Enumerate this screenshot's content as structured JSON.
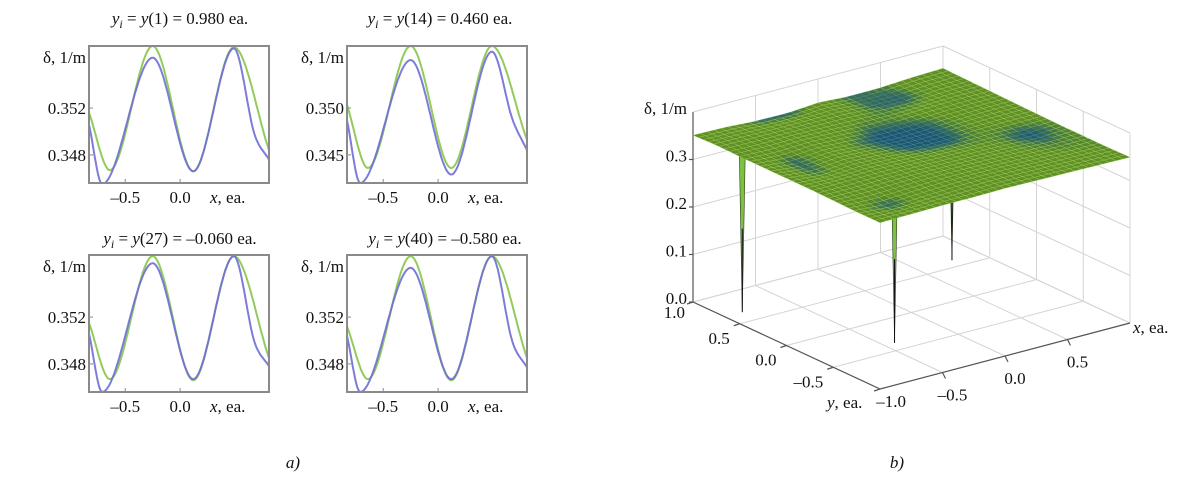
{
  "captions": {
    "a": "a)",
    "b": "b)"
  },
  "colors": {
    "green_curve": "#86c54a",
    "blue_curve": "#6e6ed6",
    "surface_high": "#5f8f26",
    "surface_low": "#1d5670",
    "spike": "#7cc142"
  },
  "chart_data": [
    {
      "type": "line",
      "title": {
        "var": "y",
        "sub": "i",
        "eq": " = ",
        "fn": "y",
        "rest": "(1) = 0.980 ea."
      },
      "ylabel": "δ, 1/m",
      "xlabel": {
        "var": "x",
        "rest": ", ea."
      },
      "xlim": [
        -0.83,
        0.81
      ],
      "ylim": [
        0.3456,
        0.3573
      ],
      "xticks": [
        {
          "v": -0.5,
          "label": "–0.5"
        },
        {
          "v": 0.0,
          "label": "0.0"
        }
      ],
      "yticks": [
        {
          "v": 0.352,
          "label": "0.352"
        },
        {
          "v": 0.348,
          "label": "0.348"
        }
      ],
      "series": [
        {
          "color": "#86c54a",
          "points": [
            [
              -0.83,
              0.3516
            ],
            [
              -0.64,
              0.3467
            ],
            [
              -0.25,
              0.3573
            ],
            [
              0.12,
              0.3466
            ],
            [
              0.49,
              0.3572
            ],
            [
              0.81,
              0.3484
            ]
          ]
        },
        {
          "color": "#6e6ed6",
          "points": [
            [
              -0.83,
              0.3506
            ],
            [
              -0.71,
              0.3455
            ],
            [
              -0.25,
              0.3563
            ],
            [
              0.12,
              0.3466
            ],
            [
              0.49,
              0.3571
            ],
            [
              0.68,
              0.3497
            ],
            [
              0.81,
              0.3476
            ]
          ]
        }
      ]
    },
    {
      "type": "line",
      "title": {
        "var": "y",
        "sub": "i",
        "eq": " = ",
        "fn": "y",
        "rest": "(14) = 0.460 ea."
      },
      "ylabel": "δ, 1/m",
      "xlabel": {
        "var": "x",
        "rest": ", ea."
      },
      "xlim": [
        -0.83,
        0.81
      ],
      "ylim": [
        0.342,
        0.3566
      ],
      "xticks": [
        {
          "v": -0.5,
          "label": "–0.5"
        },
        {
          "v": 0.0,
          "label": "0.0"
        }
      ],
      "yticks": [
        {
          "v": 0.35,
          "label": "0.350"
        },
        {
          "v": 0.345,
          "label": "0.345"
        }
      ],
      "series": [
        {
          "color": "#86c54a",
          "points": [
            [
              -0.83,
              0.3503
            ],
            [
              -0.64,
              0.3436
            ],
            [
              -0.25,
              0.3566
            ],
            [
              0.12,
              0.3436
            ],
            [
              0.49,
              0.3566
            ],
            [
              0.81,
              0.3466
            ]
          ]
        },
        {
          "color": "#6e6ed6",
          "points": [
            [
              -0.83,
              0.3487
            ],
            [
              -0.71,
              0.342
            ],
            [
              -0.25,
              0.3551
            ],
            [
              0.12,
              0.3429
            ],
            [
              0.49,
              0.356
            ],
            [
              0.68,
              0.3487
            ],
            [
              0.81,
              0.3455
            ]
          ]
        }
      ]
    },
    {
      "type": "line",
      "title": {
        "var": "y",
        "sub": "i",
        "eq": " = ",
        "fn": "y",
        "rest": "(27) = –0.060 ea."
      },
      "ylabel": "δ, 1/m",
      "xlabel": {
        "var": "x",
        "rest": ", ea."
      },
      "xlim": [
        -0.83,
        0.81
      ],
      "ylim": [
        0.3456,
        0.3573
      ],
      "xticks": [
        {
          "v": -0.5,
          "label": "–0.5"
        },
        {
          "v": 0.0,
          "label": "0.0"
        }
      ],
      "yticks": [
        {
          "v": 0.352,
          "label": "0.352"
        },
        {
          "v": 0.348,
          "label": "0.348"
        }
      ],
      "series": [
        {
          "color": "#86c54a",
          "points": [
            [
              -0.83,
              0.3515
            ],
            [
              -0.64,
              0.3467
            ],
            [
              -0.25,
              0.3572
            ],
            [
              0.12,
              0.3466
            ],
            [
              0.49,
              0.3572
            ],
            [
              0.81,
              0.3485
            ]
          ]
        },
        {
          "color": "#6e6ed6",
          "points": [
            [
              -0.83,
              0.3506
            ],
            [
              -0.71,
              0.3456
            ],
            [
              -0.25,
              0.3566
            ],
            [
              0.12,
              0.3467
            ],
            [
              0.49,
              0.3572
            ],
            [
              0.68,
              0.3498
            ],
            [
              0.81,
              0.3478
            ]
          ]
        }
      ]
    },
    {
      "type": "line",
      "title": {
        "var": "y",
        "sub": "i",
        "eq": " = ",
        "fn": "y",
        "rest": "(40) = –0.580 ea."
      },
      "ylabel": "δ, 1/m",
      "xlabel": {
        "var": "x",
        "rest": ", ea."
      },
      "xlim": [
        -0.83,
        0.81
      ],
      "ylim": [
        0.3456,
        0.3573
      ],
      "xticks": [
        {
          "v": -0.5,
          "label": "–0.5"
        },
        {
          "v": 0.0,
          "label": "0.0"
        }
      ],
      "yticks": [
        {
          "v": 0.352,
          "label": "0.352"
        },
        {
          "v": 0.348,
          "label": "0.348"
        }
      ],
      "series": [
        {
          "color": "#86c54a",
          "points": [
            [
              -0.83,
              0.3512
            ],
            [
              -0.64,
              0.3467
            ],
            [
              -0.25,
              0.3572
            ],
            [
              0.12,
              0.3466
            ],
            [
              0.49,
              0.3572
            ],
            [
              0.81,
              0.3485
            ]
          ]
        },
        {
          "color": "#6e6ed6",
          "points": [
            [
              -0.83,
              0.3504
            ],
            [
              -0.71,
              0.3456
            ],
            [
              -0.25,
              0.3562
            ],
            [
              0.12,
              0.3467
            ],
            [
              0.49,
              0.3572
            ],
            [
              0.68,
              0.3498
            ],
            [
              0.81,
              0.3477
            ]
          ]
        }
      ]
    },
    {
      "type": "surface",
      "zlabel": "δ, 1/m",
      "xlabel": {
        "var": "x",
        "rest": ", ea."
      },
      "ylabel": {
        "var": "y",
        "rest": ", ea."
      },
      "xlim": [
        -1,
        1
      ],
      "ylim": [
        -1,
        1
      ],
      "zlim": [
        0,
        0.4
      ],
      "zticks": [
        {
          "v": 0.0,
          "label": "0.0"
        },
        {
          "v": 0.1,
          "label": "0.1"
        },
        {
          "v": 0.2,
          "label": "0.2"
        },
        {
          "v": 0.3,
          "label": "0.3"
        }
      ],
      "yticks": [
        {
          "v": 1.0,
          "label": "1.0"
        },
        {
          "v": 0.5,
          "label": "0.5"
        },
        {
          "v": 0.0,
          "label": "0.0"
        },
        {
          "v": -0.5,
          "label": "–0.5"
        },
        {
          "v": -1.0,
          "label": "–1.0"
        }
      ],
      "xticks": [
        {
          "v": -0.5,
          "label": "–0.5"
        },
        {
          "v": 0.0,
          "label": "0.0"
        },
        {
          "v": 0.5,
          "label": "0.5"
        }
      ],
      "grid": true,
      "grid_x": [
        -1,
        -0.75,
        -0.5,
        -0.25,
        0,
        0.25,
        0.5,
        0.75,
        1
      ],
      "grid_y": [
        -1,
        -0.75,
        -0.5,
        -0.25,
        0,
        0.25,
        0.5,
        0.75,
        1
      ],
      "z": [
        [
          0.35,
          0.351,
          0.352,
          0.352,
          0.353,
          0.352,
          0.351,
          0.35,
          0.349
        ],
        [
          0.35,
          0.345,
          0.349,
          0.352,
          0.353,
          0.352,
          0.35,
          0.349,
          0.348
        ],
        [
          0.351,
          0.35,
          0.352,
          0.353,
          0.352,
          0.351,
          0.349,
          0.347,
          0.348
        ],
        [
          0.352,
          0.352,
          0.353,
          0.352,
          0.35,
          0.349,
          0.348,
          0.344,
          0.348
        ],
        [
          0.352,
          0.346,
          0.352,
          0.349,
          0.345,
          0.344,
          0.348,
          0.349,
          0.349
        ],
        [
          0.352,
          0.345,
          0.351,
          0.347,
          0.343,
          0.344,
          0.348,
          0.35,
          0.35
        ],
        [
          0.352,
          0.35,
          0.352,
          0.35,
          0.347,
          0.348,
          0.35,
          0.351,
          0.351
        ],
        [
          0.353,
          0.352,
          0.351,
          0.351,
          0.351,
          0.346,
          0.345,
          0.35,
          0.352
        ],
        [
          0.351,
          0.35,
          0.346,
          0.345,
          0.35,
          0.346,
          0.347,
          0.351,
          0.353
        ]
      ],
      "spikes": [
        {
          "x": -0.86,
          "y": 0.66,
          "z": 0.0
        },
        {
          "x": -0.42,
          "y": -0.38,
          "z": 0.0
        },
        {
          "x": 0.78,
          "y": 0.61,
          "z": 0.0
        }
      ]
    }
  ]
}
